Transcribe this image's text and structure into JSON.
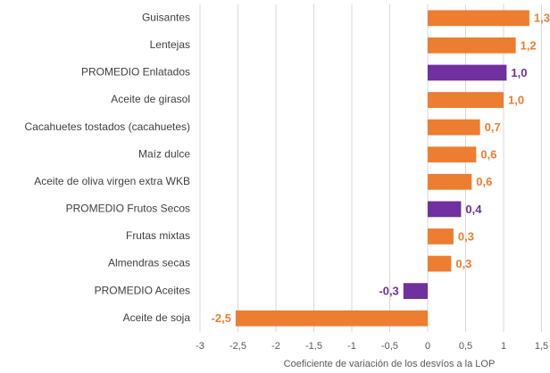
{
  "chart_data": {
    "type": "bar",
    "orientation": "horizontal",
    "x_label": "Coeficiente de variación de los desvíos a la LOP",
    "categories": [
      "Guisantes",
      "Lentejas",
      "PROMEDIO Enlatados",
      "Aceite de girasol",
      "Cacahuetes tostados (cacahuetes)",
      "Maíz dulce",
      "Aceite de oliva virgen extra WKB",
      "PROMEDIO Frutos Secos",
      "Frutas mixtas",
      "Almendras secas",
      "PROMEDIO Aceites",
      "Aceite de soja"
    ],
    "values": [
      1.34,
      1.16,
      1.04,
      1.0,
      0.69,
      0.64,
      0.58,
      0.44,
      0.34,
      0.31,
      -0.32,
      -2.53
    ],
    "value_labels": [
      "1,3",
      "1,2",
      "1,0",
      "1,0",
      "0,7",
      "0,6",
      "0,6",
      "0,4",
      "0,3",
      "0,3",
      "-0,3",
      "-2,5"
    ],
    "colors": [
      "#ed7d31",
      "#ed7d31",
      "#7030a0",
      "#ed7d31",
      "#ed7d31",
      "#ed7d31",
      "#ed7d31",
      "#7030a0",
      "#ed7d31",
      "#ed7d31",
      "#7030a0",
      "#ed7d31"
    ],
    "xlim": [
      -3,
      1.5
    ],
    "xticks": [
      -3,
      {
        "value": -2.5,
        "label": "-2,5"
      },
      -2,
      {
        "value": -1.5,
        "label": "-1,5"
      },
      -1,
      {
        "value": -0.5,
        "label": "-0,5"
      },
      0,
      {
        "value": 0.5,
        "label": "0,5"
      },
      1,
      {
        "value": 1.5,
        "label": "1,5"
      }
    ],
    "grid": true
  }
}
